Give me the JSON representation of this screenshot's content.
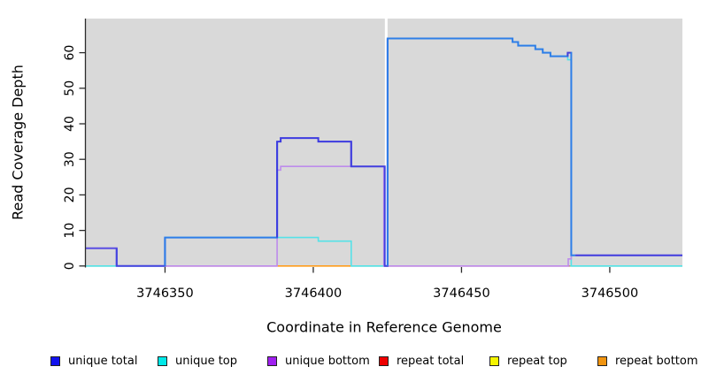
{
  "chart_data": {
    "type": "line",
    "subtype": "step-coverage",
    "title": "",
    "xlabel": "Coordinate in Reference Genome",
    "ylabel": "Read Coverage Depth",
    "xlim": [
      3746323.3,
      3746524.5
    ],
    "ylim": [
      0,
      69.6
    ],
    "grid": false,
    "plot_bg": "#d9d9d9",
    "axis_color": "#2b2b2b",
    "x_ticks": [
      {
        "value": 3746350,
        "label": "3746350"
      },
      {
        "value": 3746400,
        "label": "3746400"
      },
      {
        "value": 3746450,
        "label": "3746450"
      },
      {
        "value": 3746500,
        "label": "3746500"
      }
    ],
    "y_ticks": [
      {
        "value": 0,
        "label": "0"
      },
      {
        "value": 10,
        "label": "10"
      },
      {
        "value": 20,
        "label": "20"
      },
      {
        "value": 30,
        "label": "30"
      },
      {
        "value": 40,
        "label": "40"
      },
      {
        "value": 50,
        "label": "50"
      },
      {
        "value": 60,
        "label": "60"
      }
    ],
    "gap_marker": {
      "from": 3746424.15,
      "to": 3746425.05,
      "color": "#ffffff"
    },
    "baseline_segments": [
      {
        "from": 3746323.3,
        "to": 3746333.7,
        "color": "#90CC90"
      },
      {
        "from": 3746333.7,
        "to": 3746350.0,
        "color": "#90CC90"
      },
      {
        "from": 3746350.0,
        "to": 3746387.8,
        "color": "#D4607A"
      },
      {
        "from": 3746387.8,
        "to": 3746412.8,
        "color": "#FF9C1C"
      },
      {
        "from": 3746412.8,
        "to": 3746424.1,
        "color": "#90CC90"
      },
      {
        "from": 3746424.1,
        "to": 3746486.5,
        "color": "#D4607A"
      },
      {
        "from": 3746486.5,
        "to": 3746524.5,
        "color": "#90CC90"
      }
    ],
    "series": [
      {
        "name": "unique top",
        "draw": true,
        "color": "#55E2E8",
        "width": 1.6,
        "points": [
          [
            3746323.3,
            0
          ],
          [
            3746350,
            8
          ],
          [
            3746401.7,
            7
          ],
          [
            3746412.8,
            0
          ],
          [
            3746425.05,
            64
          ],
          [
            3746467.2,
            63
          ],
          [
            3746469.1,
            62
          ],
          [
            3746474.9,
            61
          ],
          [
            3746477.4,
            60
          ],
          [
            3746480,
            59
          ],
          [
            3746485.8,
            58
          ],
          [
            3746487.0,
            0
          ],
          [
            3746524.5,
            0
          ]
        ]
      },
      {
        "name": "unique bottom",
        "draw": true,
        "color": "#BD8CEC",
        "width": 1.6,
        "points": [
          [
            3746323.3,
            5
          ],
          [
            3746333.7,
            0
          ],
          [
            3746387.8,
            27
          ],
          [
            3746389,
            28
          ],
          [
            3746423.8,
            0
          ],
          [
            3746486.0,
            2
          ],
          [
            3746487.0,
            3
          ],
          [
            3746524.5,
            3
          ]
        ]
      },
      {
        "name": "repeat total",
        "draw": false,
        "color": "#D4607A",
        "width": 1.5,
        "points": [
          [
            3746323.3,
            0
          ],
          [
            3746524.5,
            0
          ]
        ]
      },
      {
        "name": "repeat top",
        "draw": false,
        "color": "#EAEA00",
        "width": 1.5,
        "points": [
          [
            3746323.3,
            0
          ],
          [
            3746524.5,
            0
          ]
        ]
      },
      {
        "name": "repeat bottom",
        "draw": false,
        "color": "#FF9C1C",
        "width": 1.5,
        "points": [
          [
            3746323.3,
            0
          ],
          [
            3746524.5,
            0
          ]
        ]
      },
      {
        "name": "unique total",
        "draw": true,
        "color": "#3D3BE0",
        "width": 2,
        "points": [
          [
            3746323.3,
            5
          ],
          [
            3746333.7,
            0
          ],
          [
            3746350,
            8
          ],
          [
            3746387.8,
            35
          ],
          [
            3746389,
            36
          ],
          [
            3746401.7,
            35
          ],
          [
            3746412.8,
            28
          ],
          [
            3746424.1,
            0
          ],
          [
            3746425.05,
            64
          ],
          [
            3746467.2,
            63
          ],
          [
            3746469.1,
            62
          ],
          [
            3746474.9,
            61
          ],
          [
            3746477.4,
            60
          ],
          [
            3746480,
            59
          ],
          [
            3746485.8,
            60
          ],
          [
            3746487.0,
            3
          ],
          [
            3746524.5,
            3
          ]
        ],
        "color_segments": [
          {
            "from": 3746323.3,
            "to": 3746333.7,
            "color": "#5B4FE2"
          },
          {
            "from": 3746333.7,
            "to": 3746350.0,
            "color": "#4444E0"
          },
          {
            "from": 3746350.0,
            "to": 3746387.8,
            "color": "#2E7EE8"
          },
          {
            "from": 3746387.8,
            "to": 3746412.8,
            "color": "#3D3BE0"
          },
          {
            "from": 3746412.8,
            "to": 3746425.05,
            "color": "#4340DE"
          },
          {
            "from": 3746425.05,
            "to": 3746485.8,
            "color": "#2E7EE8"
          },
          {
            "from": 3746485.8,
            "to": 3746486.9,
            "color": "#4A42D8"
          },
          {
            "from": 3746486.9,
            "to": 3746488.4,
            "color": "#2E7EE8"
          },
          {
            "from": 3746488.4,
            "to": 3746524.5,
            "color": "#403CDE"
          }
        ]
      }
    ],
    "legend": [
      {
        "label": "unique total",
        "color": "#1212EE"
      },
      {
        "label": "unique top",
        "color": "#00E8E8"
      },
      {
        "label": "unique bottom",
        "color": "#A020F0"
      },
      {
        "label": "repeat total",
        "color": "#EE0000"
      },
      {
        "label": "repeat top",
        "color": "#F5F500"
      },
      {
        "label": "repeat bottom",
        "color": "#F09410"
      }
    ],
    "legend_position": "bottom"
  }
}
